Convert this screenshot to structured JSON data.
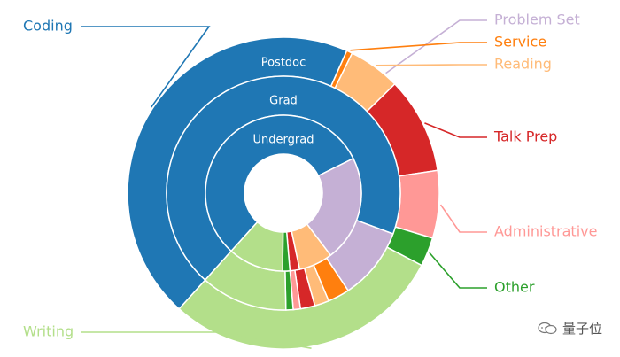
{
  "chart_data": {
    "type": "pie",
    "subtype": "nested-donut",
    "rings": [
      {
        "name": "Postdoc",
        "segments": [
          {
            "category": "Coding",
            "value": 45.0
          },
          {
            "category": "Problem Set",
            "value": 0.0
          },
          {
            "category": "Service",
            "value": 0.6
          },
          {
            "category": "Reading",
            "value": 5.4
          },
          {
            "category": "Talk Prep",
            "value": 10.0
          },
          {
            "category": "Administrative",
            "value": 7.0
          },
          {
            "category": "Other",
            "value": 3.0
          },
          {
            "category": "Writing",
            "value": 29.0
          }
        ]
      },
      {
        "name": "Grad",
        "segments": [
          {
            "category": "Coding",
            "value": 69.0
          },
          {
            "category": "Problem Set",
            "value": 10.0
          },
          {
            "category": "Service",
            "value": 3.0
          },
          {
            "category": "Reading",
            "value": 2.0
          },
          {
            "category": "Talk Prep",
            "value": 2.0
          },
          {
            "category": "Administrative",
            "value": 1.0
          },
          {
            "category": "Other",
            "value": 1.0
          },
          {
            "category": "Writing",
            "value": 12.0
          }
        ]
      },
      {
        "name": "Undergrad",
        "segments": [
          {
            "category": "Coding",
            "value": 56.0
          },
          {
            "category": "Problem Set",
            "value": 22.0
          },
          {
            "category": "Service",
            "value": 0.0
          },
          {
            "category": "Reading",
            "value": 7.0
          },
          {
            "category": "Talk Prep",
            "value": 2.0
          },
          {
            "category": "Administrative",
            "value": 0.0
          },
          {
            "category": "Other",
            "value": 1.5
          },
          {
            "category": "Writing",
            "value": 11.5
          }
        ]
      }
    ],
    "legend": [
      {
        "label": "Coding",
        "color": "#1f77b4",
        "side": "left"
      },
      {
        "label": "Problem Set",
        "color": "#c5b0d5",
        "side": "right"
      },
      {
        "label": "Service",
        "color": "#ff7f0e",
        "side": "right"
      },
      {
        "label": "Reading",
        "color": "#ffbb78",
        "side": "right"
      },
      {
        "label": "Talk Prep",
        "color": "#d62728",
        "side": "right"
      },
      {
        "label": "Administrative",
        "color": "#ff9896",
        "side": "right"
      },
      {
        "label": "Other",
        "color": "#2ca02c",
        "side": "right"
      },
      {
        "label": "Writing",
        "color": "#b3df8a",
        "side": "left"
      }
    ],
    "ring_label_color": "#ffffff",
    "grid": false
  },
  "watermark": {
    "text": "量子位",
    "icon": "chat-bubble-icon"
  }
}
